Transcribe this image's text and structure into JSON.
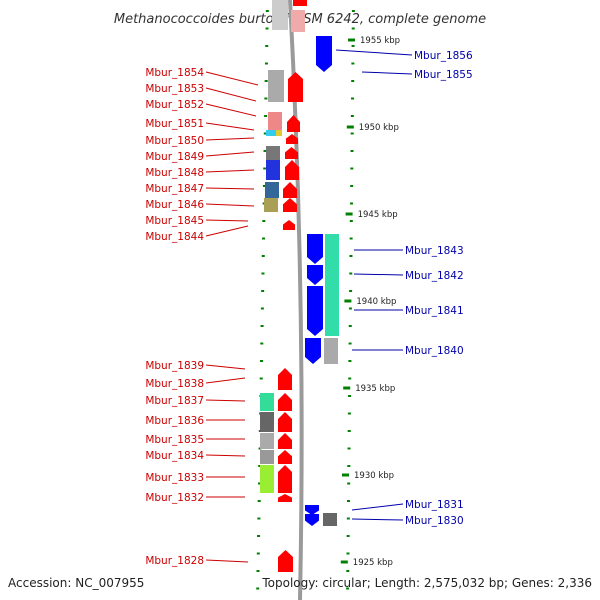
{
  "title": "Methanococcoides burtonii DSM 6242, complete genome",
  "accession": "Accession: NC_007955",
  "topology": "Topology: circular; Length: 2,575,032 bp; Genes: 2,336",
  "colors": {
    "forward": "#ff0000",
    "reverse": "#0000ff",
    "leftLabel": "#cc0000",
    "rightLabel": "#0000aa",
    "tick": "#008000",
    "axis": "#999999"
  },
  "kbp_marks": [
    {
      "label": "1955 kbp",
      "kbp": 1955
    },
    {
      "label": "1950 kbp",
      "kbp": 1950
    },
    {
      "label": "1945 kbp",
      "kbp": 1945
    },
    {
      "label": "1940 kbp",
      "kbp": 1940
    },
    {
      "label": "1935 kbp",
      "kbp": 1935
    },
    {
      "label": "1930 kbp",
      "kbp": 1930
    },
    {
      "label": "1925 kbp",
      "kbp": 1925
    }
  ],
  "left_genes": [
    {
      "name": "Mbur_1854"
    },
    {
      "name": "Mbur_1853"
    },
    {
      "name": "Mbur_1852"
    },
    {
      "name": "Mbur_1851"
    },
    {
      "name": "Mbur_1850"
    },
    {
      "name": "Mbur_1849"
    },
    {
      "name": "Mbur_1848"
    },
    {
      "name": "Mbur_1847"
    },
    {
      "name": "Mbur_1846"
    },
    {
      "name": "Mbur_1845"
    },
    {
      "name": "Mbur_1844"
    },
    {
      "name": "Mbur_1839"
    },
    {
      "name": "Mbur_1838"
    },
    {
      "name": "Mbur_1837"
    },
    {
      "name": "Mbur_1836"
    },
    {
      "name": "Mbur_1835"
    },
    {
      "name": "Mbur_1834"
    },
    {
      "name": "Mbur_1833"
    },
    {
      "name": "Mbur_1832"
    },
    {
      "name": "Mbur_1828"
    }
  ],
  "right_genes": [
    {
      "name": "Mbur_1856"
    },
    {
      "name": "Mbur_1855"
    },
    {
      "name": "Mbur_1843"
    },
    {
      "name": "Mbur_1842"
    },
    {
      "name": "Mbur_1841"
    },
    {
      "name": "Mbur_1840"
    },
    {
      "name": "Mbur_1831"
    },
    {
      "name": "Mbur_1830"
    }
  ]
}
